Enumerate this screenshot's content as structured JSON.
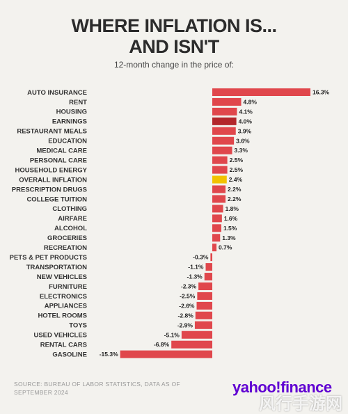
{
  "header": {
    "title_line1": "WHERE INFLATION IS...",
    "title_line2": "AND ISN'T",
    "subtitle": "12-month change in the price of:"
  },
  "footer": {
    "source": "SOURCE: BUREAU OF LABOR STATISTICS, DATA AS OF SEPTEMBER 2024",
    "logo": "yahoo!finance",
    "watermark": "风行手游网"
  },
  "colors": {
    "default_bar": "#e0474c",
    "earnings_bar": "#b3262b",
    "overall_bar": "#f2c200"
  },
  "chart_data": {
    "type": "bar",
    "orientation": "horizontal",
    "title": "WHERE INFLATION IS... AND ISN'T",
    "subtitle": "12-month change in the price of:",
    "unit": "%",
    "categories": [
      "AUTO INSURANCE",
      "RENT",
      "HOUSING",
      "EARNINGS",
      "RESTAURANT MEALS",
      "EDUCATION",
      "MEDICAL CARE",
      "PERSONAL CARE",
      "HOUSEHOLD ENERGY",
      "OVERALL INFLATION",
      "PRESCRIPTION DRUGS",
      "COLLEGE TUITION",
      "CLOTHING",
      "AIRFARE",
      "ALCOHOL",
      "GROCERIES",
      "RECREATION",
      "PETS & PET PRODUCTS",
      "TRANSPORTATION",
      "NEW VEHICLES",
      "FURNITURE",
      "ELECTRONICS",
      "APPLIANCES",
      "HOTEL ROOMS",
      "TOYS",
      "USED VEHICLES",
      "RENTAL CARS",
      "GASOLINE"
    ],
    "values": [
      16.3,
      4.8,
      4.1,
      4.0,
      3.9,
      3.6,
      3.3,
      2.5,
      2.5,
      2.4,
      2.2,
      2.2,
      1.8,
      1.6,
      1.5,
      1.3,
      0.7,
      -0.3,
      -1.1,
      -1.3,
      -2.3,
      -2.5,
      -2.6,
      -2.8,
      -2.9,
      -5.1,
      -6.8,
      -15.3
    ],
    "value_labels": [
      "16.3%",
      "4.8%",
      "4.1%",
      "4.0%",
      "3.9%",
      "3.6%",
      "3.3%",
      "2.5%",
      "2.5%",
      "2.4%",
      "2.2%",
      "2.2%",
      "1.8%",
      "1.6%",
      "1.5%",
      "1.3%",
      "0.7%",
      "-0.3%",
      "-1.1%",
      "-1.3%",
      "-2.3%",
      "-2.5%",
      "-2.6%",
      "-2.8%",
      "-2.9%",
      "-5.1%",
      "-6.8%",
      "-15.3%"
    ],
    "highlight": {
      "EARNINGS": "#b3262b",
      "OVERALL INFLATION": "#f2c200"
    },
    "xlim": [
      -15.3,
      16.3
    ],
    "grid": false,
    "legend": "none"
  }
}
